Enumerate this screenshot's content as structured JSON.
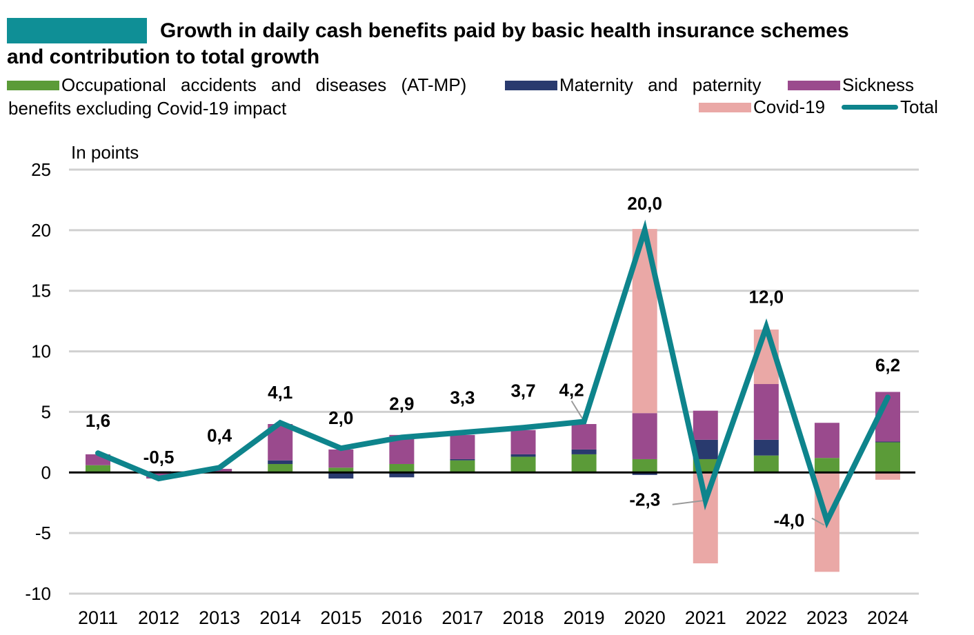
{
  "header": {
    "badge_text": "",
    "title_line1": "Growth in daily cash benefits paid by basic health insurance schemes",
    "title_line2": "and contribution to total growth"
  },
  "legend": {
    "items": [
      {
        "key": "atmp",
        "label": "Occupational accidents and diseases (AT-MP)",
        "color": "#5b9b38"
      },
      {
        "key": "maternity",
        "label": "Maternity and paternity",
        "color": "#293a6e"
      },
      {
        "key": "sickness",
        "label": "Sickness",
        "color": "#9a4a8d"
      },
      {
        "key": "covid",
        "label": "Covid-19",
        "color": "#eaa8a6"
      },
      {
        "key": "total",
        "label": "Total",
        "color": "#0e848c"
      }
    ],
    "sickness_continuation": "benefits excluding Covid-19 impact"
  },
  "chart_data": {
    "type": "bar",
    "subtype": "stacked bar with line",
    "title": "Growth in daily cash benefits paid by basic health insurance schemes and contribution to total growth",
    "ylabel": "In points",
    "xlabel": "",
    "ylim": [
      -10,
      25
    ],
    "yticks": [
      25,
      20,
      15,
      10,
      5,
      0,
      -5,
      -10
    ],
    "grid": true,
    "legend_position": "top",
    "categories": [
      "2011",
      "2012",
      "2013",
      "2014",
      "2015",
      "2016",
      "2017",
      "2018",
      "2019",
      "2020",
      "2021",
      "2022",
      "2023",
      "2024"
    ],
    "series": [
      {
        "name": "Occupational accidents and diseases (AT-MP)",
        "key": "atmp",
        "type": "bar",
        "color": "#5b9b38",
        "values": [
          0.6,
          0.0,
          0.0,
          0.7,
          0.4,
          0.7,
          1.0,
          1.3,
          1.5,
          1.1,
          1.1,
          1.4,
          1.2,
          2.5
        ]
      },
      {
        "name": "Maternity and paternity",
        "key": "maternity",
        "type": "bar",
        "color": "#293a6e",
        "values": [
          0.0,
          0.1,
          0.0,
          0.3,
          -0.5,
          -0.4,
          0.1,
          0.2,
          0.4,
          -0.2,
          1.6,
          1.3,
          0.0,
          0.05
        ]
      },
      {
        "name": "Sickness benefits excluding Covid-19 impact",
        "key": "sickness",
        "type": "bar",
        "color": "#9a4a8d",
        "values": [
          0.9,
          -0.5,
          0.3,
          3.0,
          1.5,
          2.4,
          2.0,
          2.0,
          2.1,
          3.8,
          2.4,
          4.6,
          2.9,
          4.1
        ]
      },
      {
        "name": "Covid-19",
        "key": "covid",
        "type": "bar",
        "color": "#eaa8a6",
        "values": [
          0,
          0,
          0,
          0,
          0,
          0,
          0,
          0,
          0,
          15.2,
          -7.5,
          4.5,
          -8.2,
          -0.6
        ]
      },
      {
        "name": "Total",
        "key": "total",
        "type": "line",
        "color": "#0e848c",
        "values": [
          1.6,
          -0.5,
          0.4,
          4.1,
          2.0,
          2.9,
          3.3,
          3.7,
          4.2,
          20.0,
          -2.3,
          12.0,
          -4.0,
          6.2
        ],
        "labels": [
          "1,6",
          "-0,5",
          "0,4",
          "4,1",
          "2,0",
          "2,9",
          "3,3",
          "3,7",
          "4,2",
          "20,0",
          "-2,3",
          "12,0",
          "-4,0",
          "6,2"
        ]
      }
    ]
  }
}
